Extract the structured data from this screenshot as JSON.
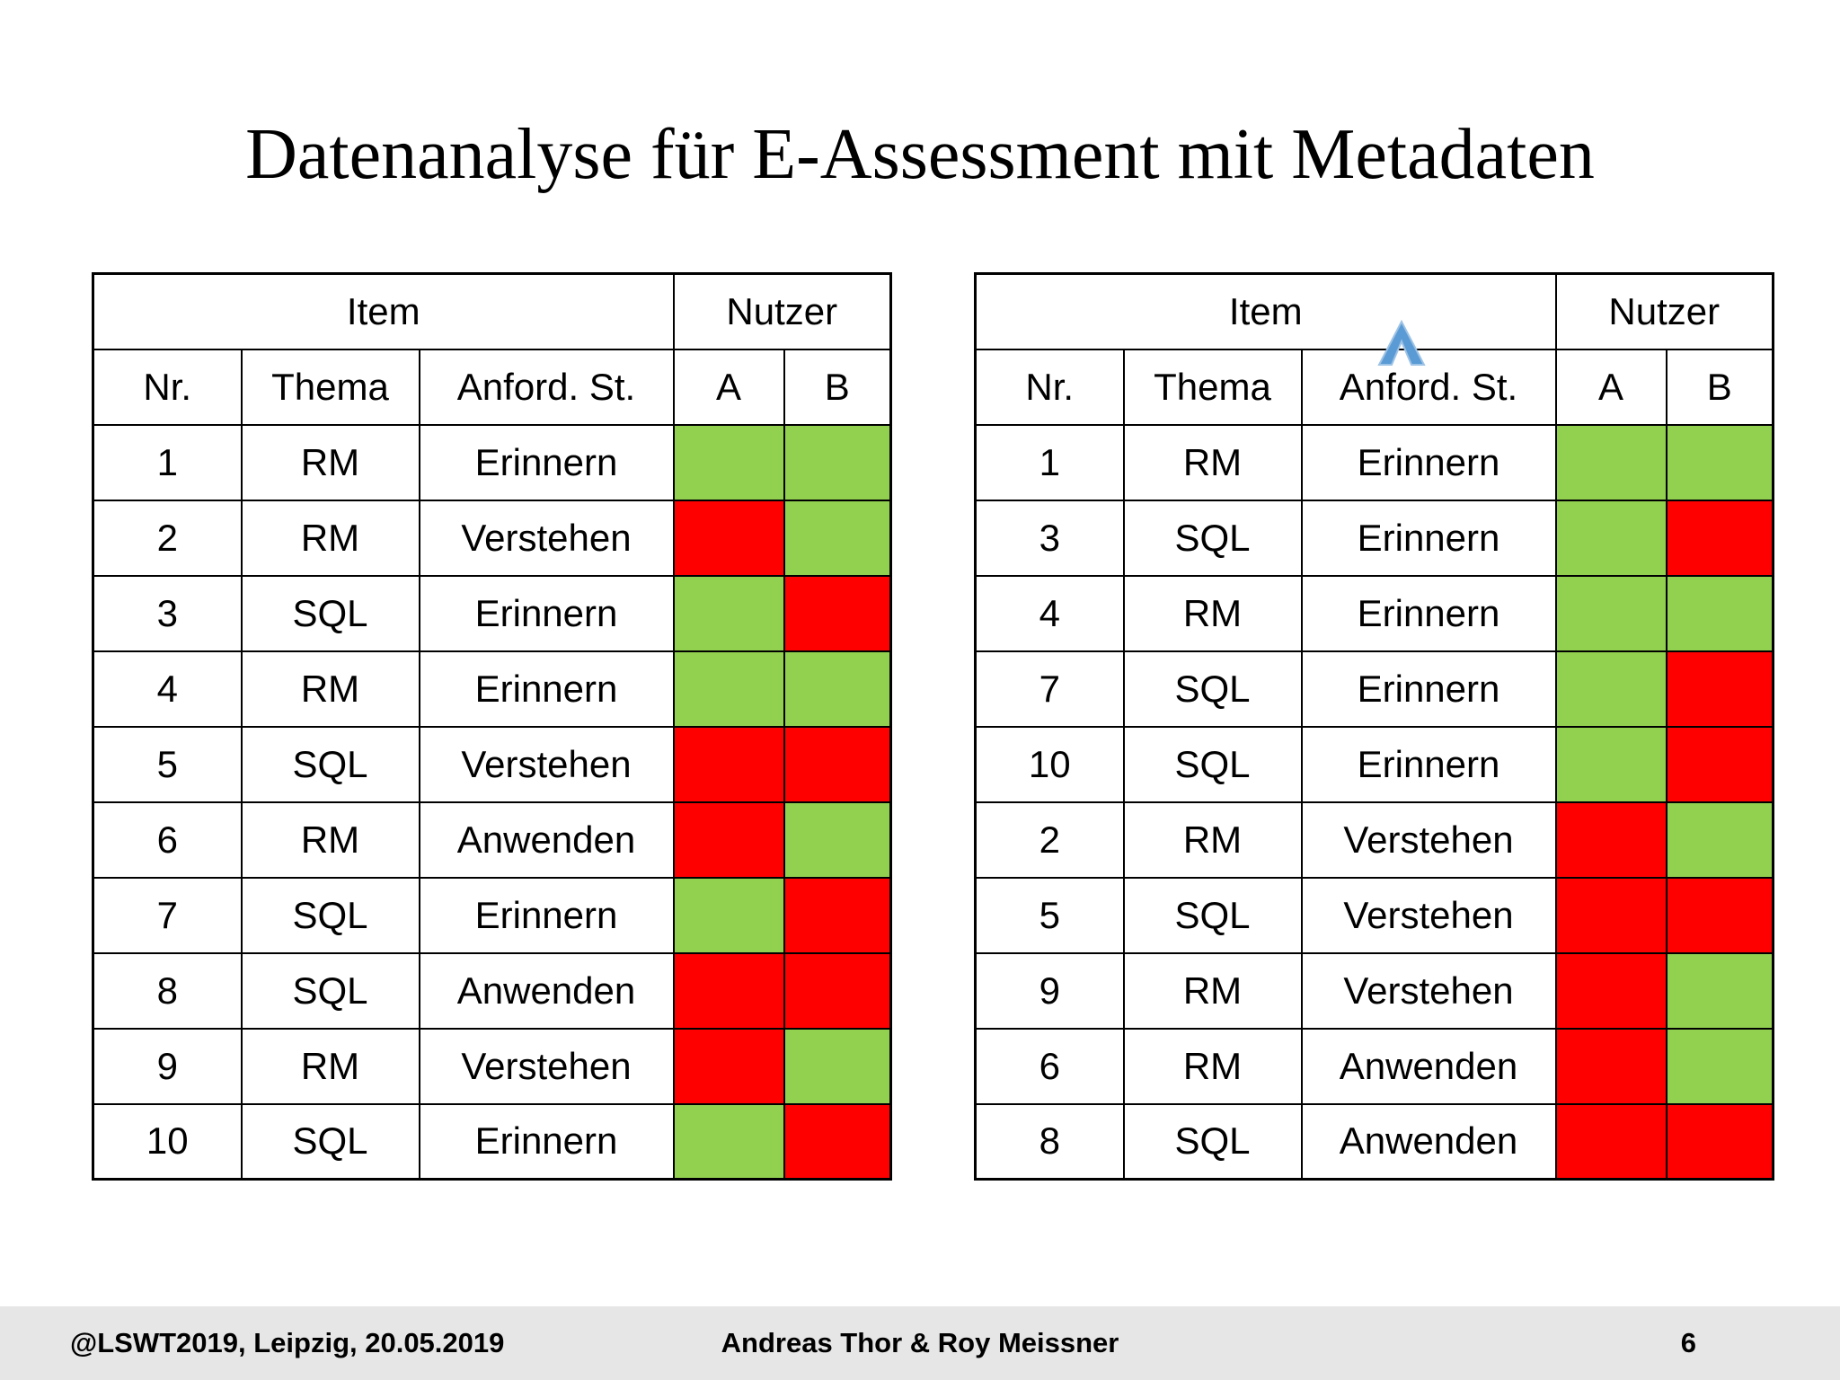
{
  "slide": {
    "title": "Datenanalyse für E-Assessment mit Metadaten"
  },
  "colors": {
    "correct": "#92D050",
    "incorrect": "#FF0000",
    "sort_icon_fill": "#5B9BD5",
    "sort_icon_edge": "#9DC3E6",
    "footer_bg": "#E7E6E6"
  },
  "legend": {
    "correct_means": "green cell = user answered item correctly",
    "incorrect_means": "red cell = user answered item incorrectly"
  },
  "tables": [
    {
      "name": "items-unsorted",
      "group_headers": {
        "item": "Item",
        "nutzer": "Nutzer"
      },
      "columns": {
        "nr": "Nr.",
        "thema": "Thema",
        "anford": "Anford. St.",
        "a": "A",
        "b": "B"
      },
      "sorted_by": null,
      "rows": [
        {
          "nr": "1",
          "thema": "RM",
          "anford": "Erinnern",
          "a": "correct",
          "b": "correct"
        },
        {
          "nr": "2",
          "thema": "RM",
          "anford": "Verstehen",
          "a": "incorrect",
          "b": "correct"
        },
        {
          "nr": "3",
          "thema": "SQL",
          "anford": "Erinnern",
          "a": "correct",
          "b": "incorrect"
        },
        {
          "nr": "4",
          "thema": "RM",
          "anford": "Erinnern",
          "a": "correct",
          "b": "correct"
        },
        {
          "nr": "5",
          "thema": "SQL",
          "anford": "Verstehen",
          "a": "incorrect",
          "b": "incorrect"
        },
        {
          "nr": "6",
          "thema": "RM",
          "anford": "Anwenden",
          "a": "incorrect",
          "b": "correct"
        },
        {
          "nr": "7",
          "thema": "SQL",
          "anford": "Erinnern",
          "a": "correct",
          "b": "incorrect"
        },
        {
          "nr": "8",
          "thema": "SQL",
          "anford": "Anwenden",
          "a": "incorrect",
          "b": "incorrect"
        },
        {
          "nr": "9",
          "thema": "RM",
          "anford": "Verstehen",
          "a": "incorrect",
          "b": "correct"
        },
        {
          "nr": "10",
          "thema": "SQL",
          "anford": "Erinnern",
          "a": "correct",
          "b": "incorrect"
        }
      ]
    },
    {
      "name": "items-sorted-by-anford-st",
      "group_headers": {
        "item": "Item",
        "nutzer": "Nutzer"
      },
      "columns": {
        "nr": "Nr.",
        "thema": "Thema",
        "anford": "Anford. St.",
        "a": "A",
        "b": "B"
      },
      "sorted_by": "anford",
      "rows": [
        {
          "nr": "1",
          "thema": "RM",
          "anford": "Erinnern",
          "a": "correct",
          "b": "correct"
        },
        {
          "nr": "3",
          "thema": "SQL",
          "anford": "Erinnern",
          "a": "correct",
          "b": "incorrect"
        },
        {
          "nr": "4",
          "thema": "RM",
          "anford": "Erinnern",
          "a": "correct",
          "b": "correct"
        },
        {
          "nr": "7",
          "thema": "SQL",
          "anford": "Erinnern",
          "a": "correct",
          "b": "incorrect"
        },
        {
          "nr": "10",
          "thema": "SQL",
          "anford": "Erinnern",
          "a": "correct",
          "b": "incorrect"
        },
        {
          "nr": "2",
          "thema": "RM",
          "anford": "Verstehen",
          "a": "incorrect",
          "b": "correct"
        },
        {
          "nr": "5",
          "thema": "SQL",
          "anford": "Verstehen",
          "a": "incorrect",
          "b": "incorrect"
        },
        {
          "nr": "9",
          "thema": "RM",
          "anford": "Verstehen",
          "a": "incorrect",
          "b": "correct"
        },
        {
          "nr": "6",
          "thema": "RM",
          "anford": "Anwenden",
          "a": "incorrect",
          "b": "correct"
        },
        {
          "nr": "8",
          "thema": "SQL",
          "anford": "Anwenden",
          "a": "incorrect",
          "b": "incorrect"
        }
      ]
    }
  ],
  "footer": {
    "left": "@LSWT2019, Leipzig, 20.05.2019",
    "center": "Andreas Thor & Roy Meissner",
    "page": "6"
  }
}
